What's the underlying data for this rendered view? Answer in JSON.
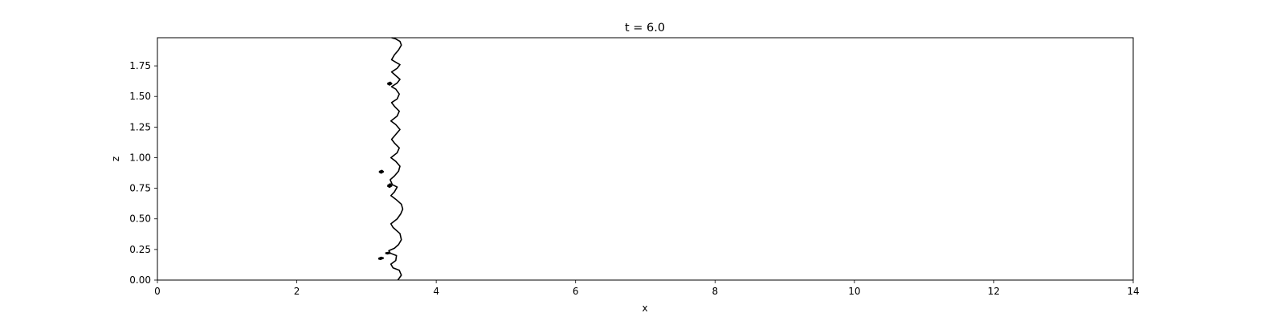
{
  "chart_data": {
    "type": "line",
    "title": "t = 6.0",
    "xlabel": "x",
    "ylabel": "z",
    "xlim": [
      0,
      14
    ],
    "ylim": [
      0,
      1.98
    ],
    "x_ticks": [
      0,
      2,
      4,
      6,
      8,
      10,
      12,
      14
    ],
    "x_tick_labels": [
      "0",
      "2",
      "4",
      "6",
      "8",
      "10",
      "12",
      "14"
    ],
    "y_ticks": [
      0,
      0.25,
      0.5,
      0.75,
      1.0,
      1.25,
      1.5,
      1.75
    ],
    "y_tick_labels": [
      "0.00",
      "0.25",
      "0.50",
      "0.75",
      "1.00",
      "1.25",
      "1.50",
      "1.75"
    ],
    "grid": false,
    "line_color": "#000000",
    "series": [
      {
        "x": [
          3.45,
          3.5,
          3.47,
          3.38,
          3.35,
          3.42,
          3.43,
          3.34,
          3.32,
          3.4,
          3.46,
          3.5,
          3.48,
          3.38,
          3.35,
          3.44,
          3.49,
          3.52,
          3.5,
          3.42,
          3.35,
          3.4,
          3.44,
          3.37,
          3.34,
          3.4,
          3.46,
          3.48,
          3.42,
          3.35,
          3.44,
          3.47,
          3.4,
          3.36,
          3.42,
          3.48,
          3.42,
          3.35,
          3.44,
          3.47,
          3.4,
          3.36,
          3.44,
          3.47,
          3.42,
          3.36,
          3.44,
          3.48,
          3.42,
          3.36,
          3.44,
          3.48,
          3.42,
          3.36,
          3.4,
          3.46,
          3.5,
          3.48,
          3.42,
          3.36
        ],
        "y": [
          0.0,
          0.04,
          0.08,
          0.1,
          0.13,
          0.16,
          0.2,
          0.22,
          0.24,
          0.26,
          0.29,
          0.33,
          0.38,
          0.43,
          0.46,
          0.5,
          0.54,
          0.58,
          0.62,
          0.66,
          0.69,
          0.72,
          0.76,
          0.78,
          0.82,
          0.85,
          0.89,
          0.93,
          0.97,
          1.0,
          1.04,
          1.08,
          1.12,
          1.15,
          1.19,
          1.23,
          1.27,
          1.3,
          1.34,
          1.38,
          1.42,
          1.45,
          1.48,
          1.52,
          1.56,
          1.58,
          1.61,
          1.64,
          1.67,
          1.7,
          1.73,
          1.76,
          1.78,
          1.8,
          1.84,
          1.88,
          1.92,
          1.95,
          1.97,
          1.98
        ]
      },
      {
        "x": [
          3.17,
          3.21,
          3.24,
          3.2,
          3.17
        ],
        "y": [
          0.175,
          0.185,
          0.18,
          0.17,
          0.175
        ]
      },
      {
        "x": [
          3.27,
          3.31,
          3.34,
          3.3,
          3.27
        ],
        "y": [
          0.22,
          0.225,
          0.22,
          0.215,
          0.22
        ]
      },
      {
        "x": [
          3.3,
          3.34,
          3.36,
          3.33,
          3.3
        ],
        "y": [
          0.77,
          0.785,
          0.77,
          0.76,
          0.77
        ]
      },
      {
        "x": [
          3.18,
          3.22,
          3.24,
          3.21,
          3.18
        ],
        "y": [
          0.885,
          0.895,
          0.885,
          0.875,
          0.885
        ]
      },
      {
        "x": [
          3.3,
          3.34,
          3.36,
          3.33,
          3.3
        ],
        "y": [
          1.605,
          1.615,
          1.605,
          1.595,
          1.605
        ]
      }
    ]
  }
}
